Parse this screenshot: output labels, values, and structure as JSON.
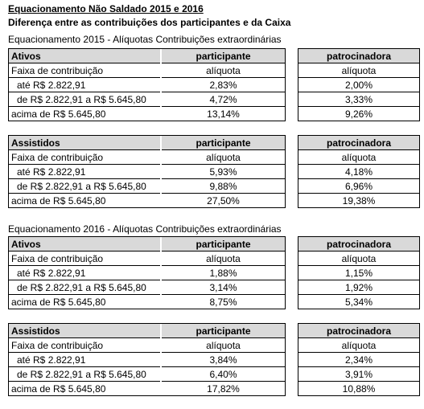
{
  "header": {
    "title": "Equacionamento Não Saldado 2015 e 2016",
    "subtitle": "Diferença entre as contribuições dos participantes e da Caixa"
  },
  "sections": [
    {
      "title": "Equacionamento 2015 - Alíquotas Contribuições extraordinárias",
      "tables": [
        {
          "columns": [
            "Ativos",
            "participante",
            "patrocinadora"
          ],
          "rows": [
            [
              "Faixa de contribuição",
              "alíquota",
              "alíquota"
            ],
            [
              "até R$ 2.822,91",
              "2,83%",
              "2,00%"
            ],
            [
              "de R$ 2.822,91 a R$ 5.645,80",
              "4,72%",
              "3,33%"
            ],
            [
              "acima de R$ 5.645,80",
              "13,14%",
              "9,26%"
            ]
          ]
        },
        {
          "columns": [
            "Assistidos",
            "participante",
            "patrocinadora"
          ],
          "rows": [
            [
              "Faixa de contribuição",
              "alíquota",
              "alíquota"
            ],
            [
              "até R$ 2.822,91",
              "5,93%",
              "4,18%"
            ],
            [
              "de R$ 2.822,91 a R$ 5.645,80",
              "9,88%",
              "6,96%"
            ],
            [
              "acima de R$ 5.645,80",
              "27,50%",
              "19,38%"
            ]
          ]
        }
      ]
    },
    {
      "title": "Equacionamento 2016 - Alíquotas Contribuições extraordinárias",
      "tables": [
        {
          "columns": [
            "Ativos",
            "participante",
            "patrocinadora"
          ],
          "rows": [
            [
              "Faixa de contribuição",
              "alíquota",
              "alíquota"
            ],
            [
              "até R$ 2.822,91",
              "1,88%",
              "1,15%"
            ],
            [
              "de R$ 2.822,91 a R$ 5.645,80",
              "3,14%",
              "1,92%"
            ],
            [
              "acima de R$ 5.645,80",
              "8,75%",
              "5,34%"
            ]
          ]
        },
        {
          "columns": [
            "Assistidos",
            "participante",
            "patrocinadora"
          ],
          "rows": [
            [
              "Faixa de contribuição",
              "alíquota",
              "alíquota"
            ],
            [
              "até R$ 2.822,91",
              "3,84%",
              "2,34%"
            ],
            [
              "de R$ 2.822,91 a R$ 5.645,80",
              "6,40%",
              "3,91%"
            ],
            [
              "acima de R$ 5.645,80",
              "17,82%",
              "10,88%"
            ]
          ]
        }
      ]
    }
  ]
}
